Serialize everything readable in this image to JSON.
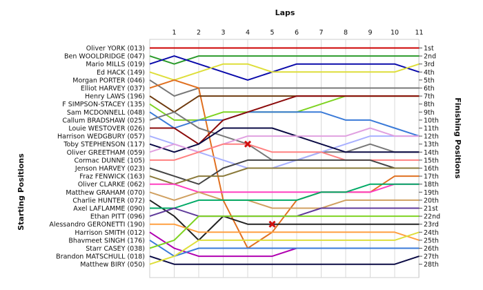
{
  "chart_data": {
    "type": "line",
    "title": "Laps",
    "ylabel_left": "Starting Positions",
    "ylabel_right": "Finishing Positions",
    "x_labels": [
      "1",
      "2",
      "3",
      "4",
      "5",
      "6",
      "7",
      "8",
      "9",
      "10",
      "11"
    ],
    "left_labels": [
      "Oliver YORK (013)",
      "Ben WOOLDRIDGE (047)",
      "Mario MILLS (019)",
      "Ed HACK (149)",
      "Morgan PORTER (046)",
      "Elliot HARVEY (037)",
      "Henry LAWS (196)",
      "F SIMPSON-STACEY (135)",
      "Sam MCDONNELL (048)",
      "Callum BRADSHAW (025)",
      "Louie WESTOVER (026)",
      "Harrison WEDGBURY (057)",
      "Toby STEPHENSON (117)",
      "Oliver GREETHAM (059)",
      "Cormac DUNNE (105)",
      "Jenson HARVEY (023)",
      "Fraz FENWICK (163)",
      "Oliver CLARKE (062)",
      "Matthew GRAHAM (070)",
      "Charlie HUNTER (072)",
      "Axel LAFLAMME (090)",
      "Ethan PITT (096)",
      "Alessandro GERONETTI (190)",
      "Harrison SMITH (012)",
      "Bhavmeet SINGH (176)",
      "Starr CASEY (038)",
      "Brandon MATSCHULL (018)",
      "Matthew BIRY (050)"
    ],
    "right_labels": [
      "1st",
      "2nd",
      "3rd",
      "4th",
      "5th",
      "6th",
      "7th",
      "8th",
      "9th",
      "10th",
      "11th",
      "12th",
      "13th",
      "14th",
      "15th",
      "16th",
      "17th",
      "18th",
      "19th",
      "20th",
      "21st",
      "22nd",
      "23rd",
      "24th",
      "25th",
      "26th",
      "27th",
      "28th"
    ],
    "series": [
      {
        "color": "#cc0000",
        "positions": [
          1,
          1,
          1,
          1,
          1,
          1,
          1,
          1,
          1,
          1,
          1,
          1
        ]
      },
      {
        "color": "#2a9a2a",
        "positions": [
          2,
          3,
          2,
          2,
          2,
          2,
          2,
          2,
          2,
          2,
          2,
          2
        ]
      },
      {
        "color": "#0a0aaa",
        "positions": [
          3,
          2,
          3,
          4,
          5,
          4,
          3,
          3,
          3,
          3,
          3,
          4
        ]
      },
      {
        "color": "#dede3a",
        "positions": [
          4,
          5,
          4,
          3,
          3,
          4,
          4,
          4,
          4,
          4,
          4,
          3
        ]
      },
      {
        "color": "#777777",
        "positions": [
          5,
          7,
          6,
          6,
          6,
          6,
          6,
          6,
          6,
          6,
          6,
          6
        ]
      },
      {
        "color": "#e07020",
        "positions": [
          6,
          5,
          6,
          20,
          26,
          24,
          20,
          19,
          19,
          19,
          17,
          17
        ]
      },
      {
        "color": "#6e3a0e",
        "positions": [
          7,
          9,
          7,
          7,
          7,
          7,
          7,
          7,
          7,
          7,
          7,
          7
        ]
      },
      {
        "color": "#7ed321",
        "positions": [
          8,
          10,
          10,
          9,
          9,
          9,
          9,
          8,
          7,
          7,
          7,
          7
        ]
      },
      {
        "color": "#3a7ad8",
        "positions": [
          9,
          11,
          10,
          10,
          9,
          9,
          9,
          9,
          10,
          10,
          11,
          12
        ]
      },
      {
        "color": "#777777",
        "positions": [
          10,
          9,
          11,
          12,
          13,
          15,
          15,
          14,
          14,
          13,
          14,
          14
        ]
      },
      {
        "color": "#8b0a0a",
        "positions": [
          11,
          11,
          13,
          10,
          9,
          8,
          7,
          7,
          7,
          7,
          7,
          7
        ]
      },
      {
        "color": "#a8b0ff",
        "positions": [
          12,
          13,
          14,
          15,
          16,
          16,
          15,
          14,
          13,
          12,
          12,
          12
        ]
      },
      {
        "color": "#0a0a44",
        "positions": [
          13,
          14,
          13,
          11,
          11,
          11,
          12,
          13,
          14,
          14,
          14,
          14
        ]
      },
      {
        "color": "#e0a0e0",
        "positions": [
          14,
          13,
          14,
          13,
          12,
          12,
          12,
          12,
          12,
          11,
          12,
          12
        ]
      },
      {
        "color": "#ff8080",
        "positions": [
          15,
          15,
          14,
          13,
          13,
          14,
          14,
          14,
          15,
          15,
          15,
          15
        ]
      },
      {
        "color": "#444444",
        "positions": [
          16,
          17,
          18,
          16,
          15,
          15,
          15,
          15,
          15,
          15,
          16,
          16
        ]
      },
      {
        "color": "#8a7a3a",
        "positions": [
          17,
          18,
          17,
          17,
          16,
          16,
          16,
          16,
          16,
          16,
          16,
          16
        ]
      },
      {
        "color": "#ff3fc0",
        "positions": [
          18,
          18,
          19,
          19,
          19,
          19,
          19,
          19,
          19,
          19,
          18,
          18
        ]
      },
      {
        "color": "#d0a060",
        "positions": [
          19,
          20,
          19,
          20,
          20,
          21,
          21,
          21,
          20,
          20,
          20,
          20
        ]
      },
      {
        "color": "#222222",
        "positions": [
          20,
          22,
          25,
          22,
          23,
          23,
          23,
          23,
          23,
          23,
          23,
          23
        ]
      },
      {
        "color": "#00aa66",
        "positions": [
          21,
          21,
          20,
          20,
          20,
          20,
          20,
          19,
          19,
          18,
          18,
          18
        ]
      },
      {
        "color": "#5f3a9a",
        "positions": [
          22,
          21,
          22,
          22,
          22,
          22,
          22,
          21,
          21,
          21,
          21,
          21
        ]
      },
      {
        "color": "#ff9f40",
        "positions": [
          23,
          23,
          24,
          24,
          24,
          24,
          24,
          24,
          24,
          24,
          24,
          25
        ]
      },
      {
        "color": "#b000b0",
        "positions": [
          24,
          26,
          27,
          27,
          27,
          27,
          26,
          26,
          26,
          26,
          26,
          26
        ]
      },
      {
        "color": "#3a7ad8",
        "positions": [
          25,
          27,
          26,
          26,
          26,
          26,
          26,
          26,
          26,
          26,
          26,
          26
        ]
      },
      {
        "color": "#7ed321",
        "positions": [
          26,
          25,
          22,
          22,
          22,
          22,
          22,
          22,
          22,
          22,
          22,
          22
        ]
      },
      {
        "color": "#0a0a44",
        "positions": [
          27,
          28,
          28,
          28,
          28,
          28,
          28,
          28,
          28,
          28,
          28,
          27
        ]
      },
      {
        "color": "#dede3a",
        "positions": [
          28,
          27,
          25,
          25,
          25,
          25,
          25,
          25,
          25,
          25,
          25,
          24
        ]
      }
    ],
    "retirements": [
      {
        "lap": 4,
        "position": 13
      },
      {
        "lap": 5,
        "position": 23
      }
    ]
  }
}
